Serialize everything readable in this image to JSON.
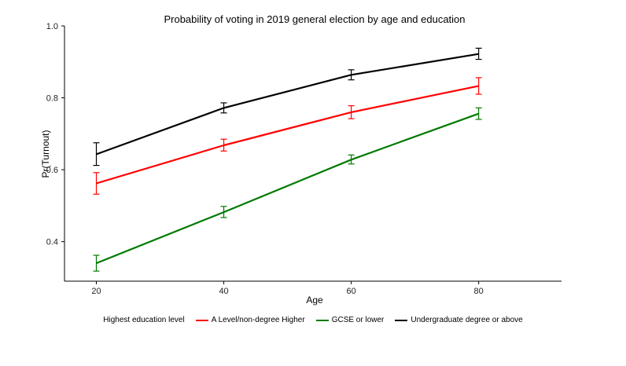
{
  "chart_data": {
    "type": "line",
    "title": "Probability of voting in 2019 general election by age and education",
    "xlabel": "Age",
    "ylabel": "Pr(Turnout)",
    "x": [
      20,
      40,
      60,
      80
    ],
    "xlim": [
      15,
      93
    ],
    "ylim": [
      0.29,
      1.0
    ],
    "x_ticks": [
      "20",
      "40",
      "60",
      "80"
    ],
    "y_ticks": [
      "0.4",
      "0.6",
      "0.8",
      "1.0"
    ],
    "grid": false,
    "legend_position": "bottom",
    "legend_title": "Highest education level",
    "series": [
      {
        "name": "A Level/non-degree Higher",
        "color": "#ff0000",
        "values": [
          0.562,
          0.668,
          0.76,
          0.833
        ],
        "lower": [
          0.532,
          0.652,
          0.742,
          0.81
        ],
        "upper": [
          0.592,
          0.685,
          0.778,
          0.856
        ]
      },
      {
        "name": "GCSE or lower",
        "color": "#007a00",
        "values": [
          0.34,
          0.482,
          0.628,
          0.756
        ],
        "lower": [
          0.318,
          0.467,
          0.616,
          0.74
        ],
        "upper": [
          0.362,
          0.498,
          0.641,
          0.772
        ]
      },
      {
        "name": "Undergraduate degree or above",
        "color": "#000000",
        "values": [
          0.643,
          0.772,
          0.864,
          0.922
        ],
        "lower": [
          0.612,
          0.758,
          0.85,
          0.907
        ],
        "upper": [
          0.675,
          0.786,
          0.878,
          0.938
        ]
      }
    ]
  }
}
